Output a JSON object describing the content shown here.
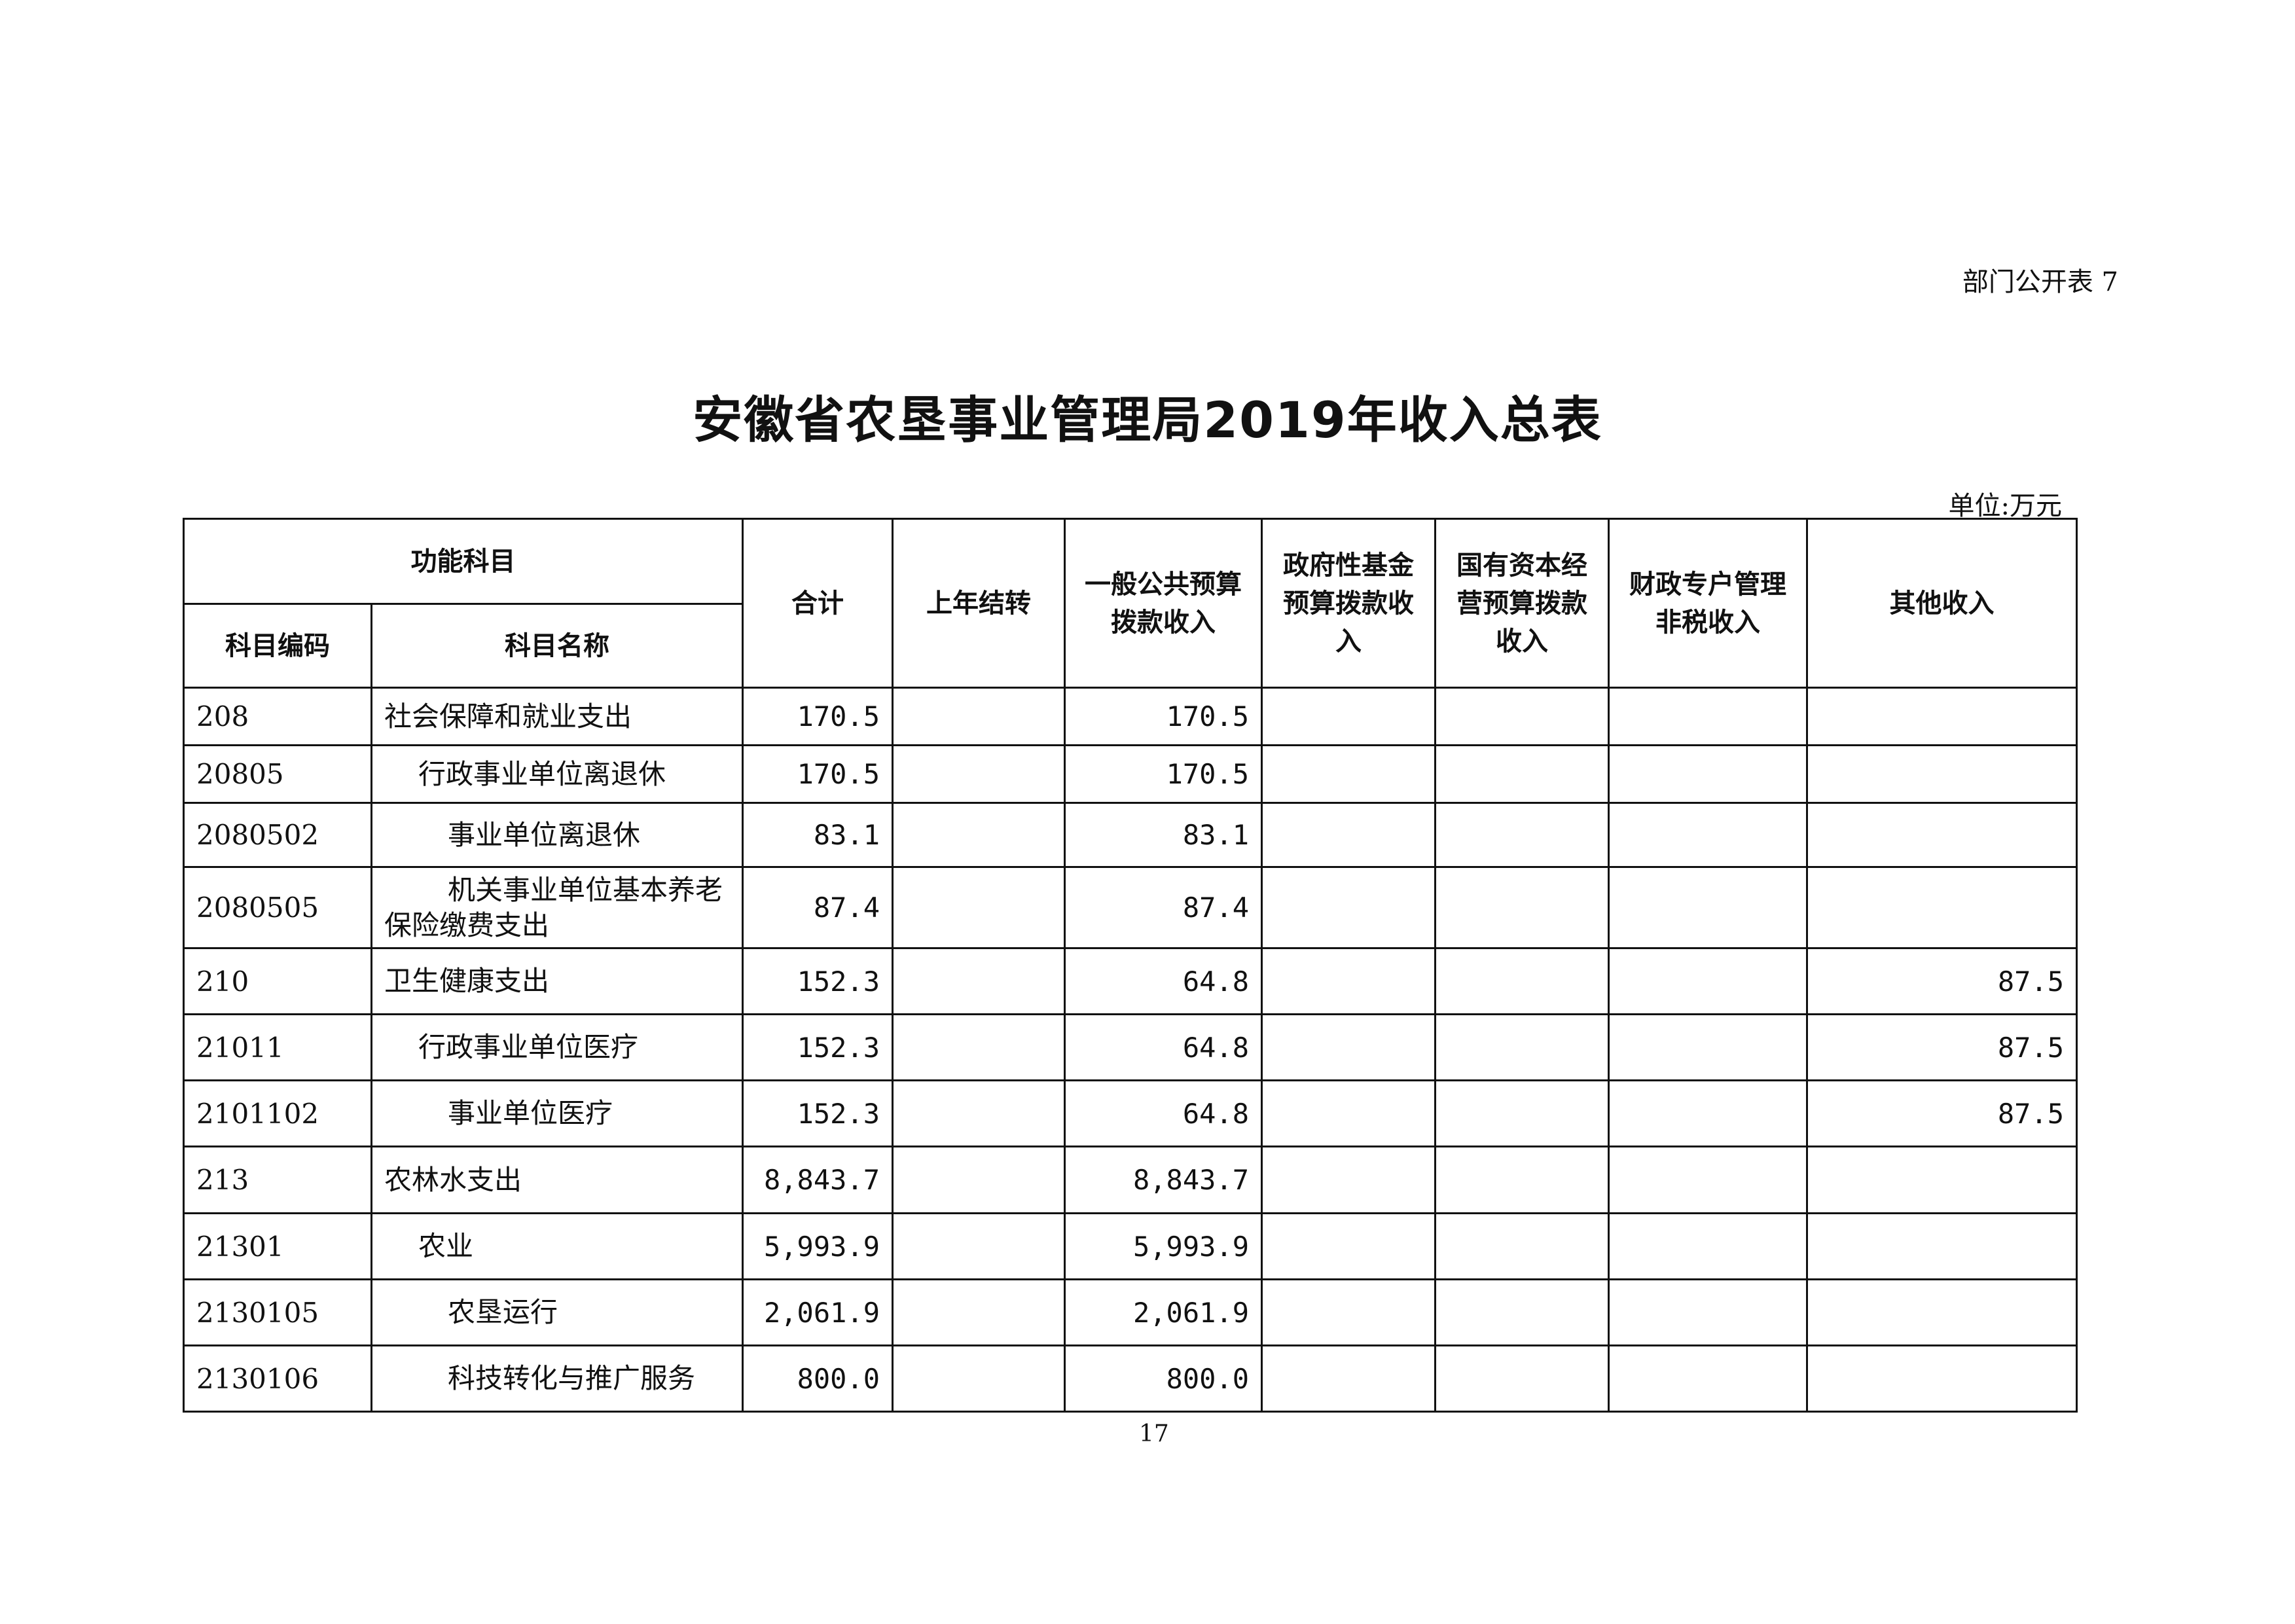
{
  "header": {
    "form_tag": "部门公开表 7",
    "title": "安徽省农垦事业管理局2019年收入总表",
    "unit": "单位:万元"
  },
  "table": {
    "group_header": "功能科目",
    "columns": [
      "科目编码",
      "科目名称",
      "合计",
      "上年结转",
      "一般公共预算拨款收入",
      "政府性基金预算拨款收入",
      "国有资本经营预算拨款收入",
      "财政专户管理非税收入",
      "其他收入"
    ],
    "rows": [
      {
        "code": "208",
        "name": "社会保障和就业支出",
        "level": 0,
        "total": "170.5",
        "carryover": "",
        "general": "170.5",
        "fund": "",
        "state_capital": "",
        "special_account": "",
        "other": ""
      },
      {
        "code": "20805",
        "name": "行政事业单位离退休",
        "level": 1,
        "total": "170.5",
        "carryover": "",
        "general": "170.5",
        "fund": "",
        "state_capital": "",
        "special_account": "",
        "other": ""
      },
      {
        "code": "2080502",
        "name": "事业单位离退休",
        "level": 2,
        "total": "83.1",
        "carryover": "",
        "general": "83.1",
        "fund": "",
        "state_capital": "",
        "special_account": "",
        "other": ""
      },
      {
        "code": "2080505",
        "name": "机关事业单位基本养老保险缴费支出",
        "level": 2,
        "total": "87.4",
        "carryover": "",
        "general": "87.4",
        "fund": "",
        "state_capital": "",
        "special_account": "",
        "other": ""
      },
      {
        "code": "210",
        "name": "卫生健康支出",
        "level": 0,
        "total": "152.3",
        "carryover": "",
        "general": "64.8",
        "fund": "",
        "state_capital": "",
        "special_account": "",
        "other": "87.5"
      },
      {
        "code": "21011",
        "name": "行政事业单位医疗",
        "level": 1,
        "total": "152.3",
        "carryover": "",
        "general": "64.8",
        "fund": "",
        "state_capital": "",
        "special_account": "",
        "other": "87.5"
      },
      {
        "code": "2101102",
        "name": "事业单位医疗",
        "level": 2,
        "total": "152.3",
        "carryover": "",
        "general": "64.8",
        "fund": "",
        "state_capital": "",
        "special_account": "",
        "other": "87.5"
      },
      {
        "code": "213",
        "name": "农林水支出",
        "level": 0,
        "total": "8,843.7",
        "carryover": "",
        "general": "8,843.7",
        "fund": "",
        "state_capital": "",
        "special_account": "",
        "other": ""
      },
      {
        "code": "21301",
        "name": "农业",
        "level": 1,
        "total": "5,993.9",
        "carryover": "",
        "general": "5,993.9",
        "fund": "",
        "state_capital": "",
        "special_account": "",
        "other": ""
      },
      {
        "code": "2130105",
        "name": "农垦运行",
        "level": 2,
        "total": "2,061.9",
        "carryover": "",
        "general": "2,061.9",
        "fund": "",
        "state_capital": "",
        "special_account": "",
        "other": ""
      },
      {
        "code": "2130106",
        "name": "科技转化与推广服务",
        "level": 2,
        "total": "800.0",
        "carryover": "",
        "general": "800.0",
        "fund": "",
        "state_capital": "",
        "special_account": "",
        "other": ""
      }
    ]
  },
  "footer": {
    "page_number": "17"
  }
}
